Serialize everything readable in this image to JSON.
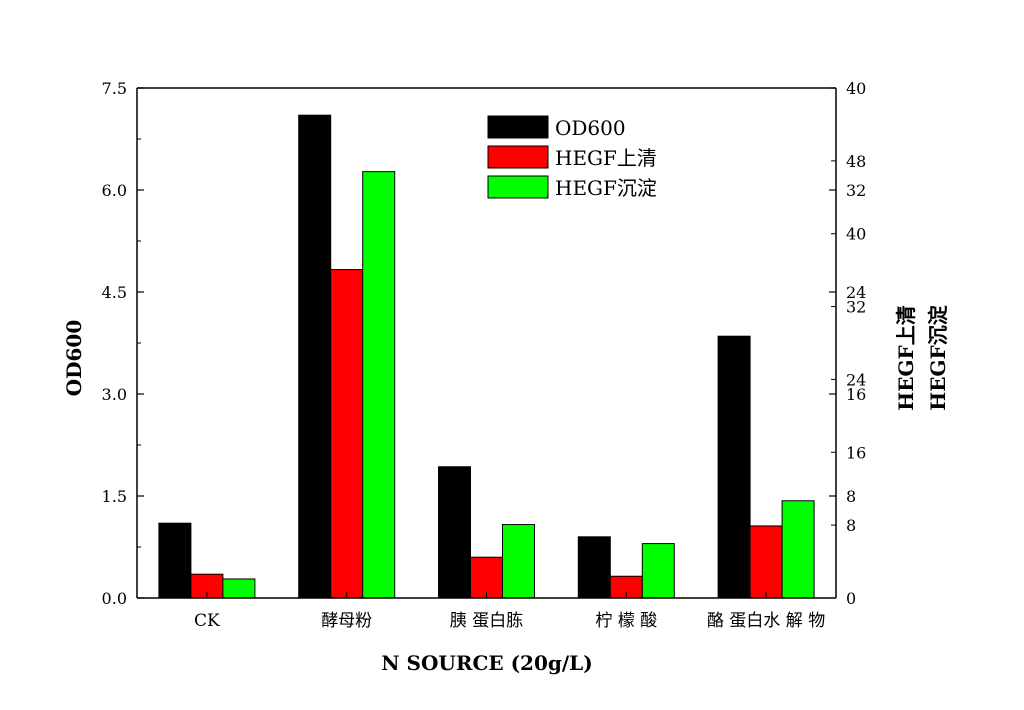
{
  "chart_data": {
    "type": "bar",
    "categories": [
      "CK",
      "酵母粉",
      "胰 蛋白胨",
      "柠 檬 酸",
      "酪 蛋白水 解 物"
    ],
    "series": [
      {
        "name": "OD600",
        "color": "#000000",
        "values": [
          1.1,
          7.1,
          1.93,
          0.9,
          3.85
        ]
      },
      {
        "name": "HEGF上清",
        "color": "#ff0000",
        "values": [
          0.35,
          4.83,
          0.6,
          0.32,
          1.06
        ]
      },
      {
        "name": "HEGF沉淀",
        "color": "#00ff00",
        "values": [
          0.28,
          6.27,
          1.08,
          0.8,
          1.43
        ]
      }
    ],
    "xlabel": "N SOURCE (20g/L)",
    "ylabel": "OD600",
    "ylim": [
      0,
      7.5
    ],
    "yticks": [
      "0.0",
      "1.5",
      "3.0",
      "4.5",
      "6.0",
      "7.5"
    ],
    "right_axis_1": {
      "label": "HEGF上清",
      "ylim": [
        0,
        40
      ],
      "ticks": [
        "8",
        "16",
        "24",
        "32",
        "40"
      ]
    },
    "right_axis_2": {
      "label": "HEGF沉淀",
      "ylim": [
        0,
        56
      ],
      "ticks": [
        "0",
        "8",
        "16",
        "24",
        "32",
        "40",
        "48"
      ]
    },
    "legend_position": "top-right",
    "grid": false
  }
}
